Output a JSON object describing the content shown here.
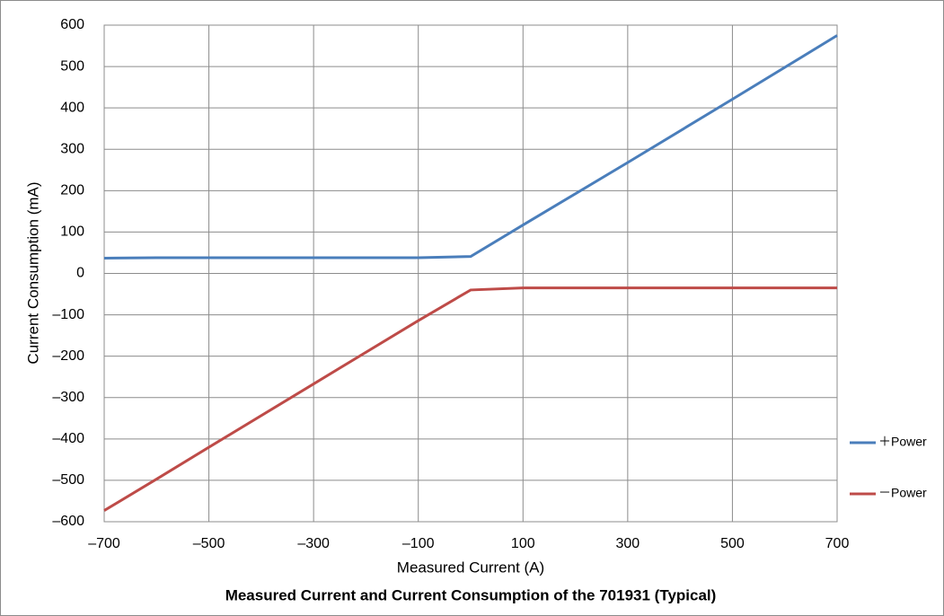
{
  "chart_data": {
    "type": "line",
    "title": "Measured Current and Current Consumption of the 701931 (Typical)",
    "x_label": "Measured Current (A)",
    "y_label": "Current Consumption (mA)",
    "x": [
      -700,
      -600,
      -500,
      -300,
      -100,
      0,
      100,
      300,
      500,
      700
    ],
    "series": [
      {
        "name": "＋Power",
        "color": "#4a7ebb",
        "values": [
          37,
          38,
          38,
          38,
          38,
          41,
          117,
          268,
          421,
          575
        ]
      },
      {
        "name": "－Power",
        "color": "#be4b48",
        "values": [
          -573,
          -497,
          -420,
          -267,
          -114,
          -40,
          -35,
          -35,
          -35,
          -35
        ]
      }
    ],
    "xlim": [
      -700,
      700
    ],
    "xticks": [
      {
        "value": -700,
        "label": "–700"
      },
      {
        "value": -500,
        "label": "–500"
      },
      {
        "value": -300,
        "label": "–300"
      },
      {
        "value": -100,
        "label": "–100"
      },
      100,
      300,
      500,
      700
    ],
    "ylim": [
      -600,
      600
    ],
    "yticks": [
      {
        "value": -600,
        "label": "–600"
      },
      {
        "value": -500,
        "label": "–500"
      },
      {
        "value": -400,
        "label": "–400"
      },
      {
        "value": -300,
        "label": "–300"
      },
      {
        "value": -200,
        "label": "–200"
      },
      {
        "value": -100,
        "label": "–100"
      },
      0,
      100,
      200,
      300,
      400,
      500,
      600
    ],
    "grid": true,
    "legend": "right"
  }
}
